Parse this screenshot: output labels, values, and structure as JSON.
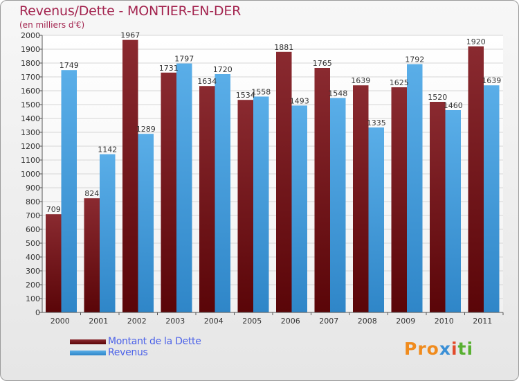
{
  "title": "Revenus/Dette - MONTIER-EN-DER",
  "subtitle": "(en milliers d'€)",
  "logo": {
    "text": "Proxiti",
    "parts": [
      "Pro",
      "x",
      "i",
      "ti"
    ]
  },
  "colors": {
    "debt": "#6e1216",
    "debt_top": "#8a2a30",
    "revenue": "#3f9fe0",
    "revenue_top": "#5aaee8"
  },
  "chart_data": {
    "type": "bar",
    "title": "Revenus/Dette - MONTIER-EN-DER",
    "ylabel": "(en milliers d'€)",
    "xlabel": "",
    "ylim": [
      0,
      2000
    ],
    "ytick_step": 100,
    "grid": true,
    "categories": [
      "2000",
      "2001",
      "2002",
      "2003",
      "2004",
      "2005",
      "2006",
      "2007",
      "2008",
      "2009",
      "2010",
      "2011"
    ],
    "series": [
      {
        "name": "Montant de la Dette",
        "values": [
          709,
          824,
          1967,
          1731,
          1634,
          1534,
          1881,
          1765,
          1639,
          1625,
          1520,
          1920
        ]
      },
      {
        "name": "Revenus",
        "values": [
          1749,
          1142,
          1289,
          1797,
          1720,
          1558,
          1493,
          1548,
          1335,
          1792,
          1460,
          1639
        ]
      }
    ],
    "legend": [
      {
        "label": "Montant de la Dette",
        "key": "debt"
      },
      {
        "label": "Revenus",
        "key": "revenue"
      }
    ],
    "legend_position": "bottom-left"
  }
}
